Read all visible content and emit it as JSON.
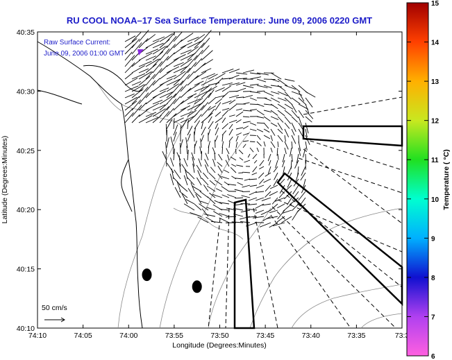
{
  "chart_data": {
    "type": "scatter",
    "title": "RU COOL  NOAA–17  Sea Surface Temperature:  June 09, 2006 0220 GMT",
    "xlabel": "Longitude (Degrees:Minutes)",
    "ylabel": "Latitude (Degrees:Minutes)",
    "x_ticks": [
      "74:10",
      "74:05",
      "74:00",
      "73:55",
      "73:50",
      "73:45",
      "73:40",
      "73:35",
      "73:3"
    ],
    "y_ticks": [
      "40:35",
      "40:30",
      "40:25",
      "40:20",
      "40:15",
      "40:10"
    ],
    "xlim": [
      -74.1667,
      -73.5
    ],
    "ylim": [
      40.1667,
      40.5833
    ],
    "grid": false,
    "legend": {
      "current_label": "Raw Surface Current:",
      "current_time": "June 09, 2006 01:00 GMT",
      "scale_label": "50 cm/s",
      "marker_color": "#8a2be2"
    },
    "colorbar": {
      "label": "Temperature ( °C)",
      "min": 6,
      "max": 15,
      "ticks": [
        "6",
        "7",
        "8",
        "9",
        "10",
        "11",
        "12",
        "13",
        "14",
        "15"
      ],
      "stops": [
        "#ff60e0",
        "#b040f0",
        "#1010d0",
        "#00b0ff",
        "#00ffd0",
        "#20e020",
        "#c8e820",
        "#ffb000",
        "#ff4000",
        "#a00000"
      ]
    },
    "vector_field": {
      "center_lon": -73.7833,
      "center_lat": 40.4167,
      "radius_deg": 0.1
    },
    "markers": [
      {
        "name": "station-a",
        "lon": -73.9667,
        "lat": 40.2417
      },
      {
        "name": "station-b",
        "lon": -73.875,
        "lat": 40.225
      }
    ],
    "colors": {
      "title": "#1c1cc8",
      "land": "#000000",
      "bathymetry": "#888888"
    }
  }
}
